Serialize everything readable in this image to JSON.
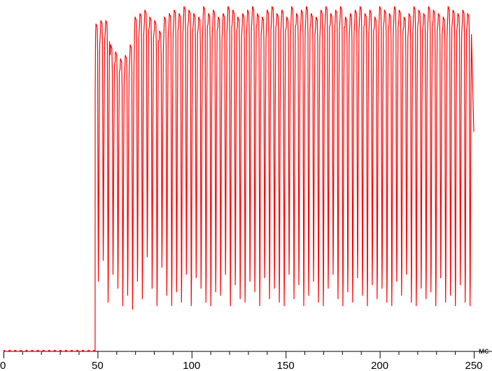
{
  "chart_data": {
    "type": "line",
    "title": "",
    "xlabel": "",
    "ylabel": "",
    "x_unit_label": "мс",
    "xlim": [
      0,
      250
    ],
    "ylim": [
      0,
      100
    ],
    "x_ticks": [
      "0",
      "50",
      "100",
      "150",
      "200",
      "250"
    ],
    "x_minor_tick_step": 10,
    "grid": false,
    "line_color": "#ff0000",
    "axis_color": "#000000",
    "baseline_until_ms": 48.5,
    "baseline_level": 0,
    "waveform_start_ms": 48.8,
    "cycle_period_ms": 2.6,
    "cycle_peaks": [
      94,
      95,
      95,
      88,
      86,
      84,
      85,
      88,
      96,
      97,
      98,
      96,
      95,
      92,
      96,
      97,
      98,
      97,
      99,
      98,
      97,
      96,
      99,
      97,
      98,
      96,
      97,
      99,
      98,
      96,
      97,
      98,
      99,
      97,
      96,
      98,
      99,
      97,
      98,
      96,
      99,
      97,
      98,
      99,
      97,
      96,
      98,
      99,
      97,
      98,
      99,
      96,
      97,
      98,
      99,
      97,
      98,
      96,
      99,
      98,
      97,
      99,
      98,
      96,
      97,
      99,
      98,
      97,
      99,
      98,
      97,
      96,
      99,
      98,
      97,
      98,
      97
    ],
    "cycle_troughs": [
      20,
      26,
      14,
      22,
      18,
      13,
      16,
      12,
      20,
      15,
      27,
      18,
      13,
      24,
      16,
      13,
      17,
      14,
      22,
      13,
      21,
      18,
      14,
      13,
      17,
      16,
      22,
      13,
      19,
      15,
      14,
      20,
      17,
      13,
      21,
      15,
      18,
      14,
      13,
      22,
      15,
      19,
      13,
      16,
      20,
      14,
      13,
      18,
      22,
      15,
      13,
      17,
      14,
      21,
      16,
      13,
      19,
      15,
      18,
      14,
      13,
      20,
      16,
      22,
      14,
      13,
      18,
      15,
      17,
      13,
      21,
      14,
      16,
      13,
      19,
      14,
      13
    ],
    "end_value": 63
  }
}
